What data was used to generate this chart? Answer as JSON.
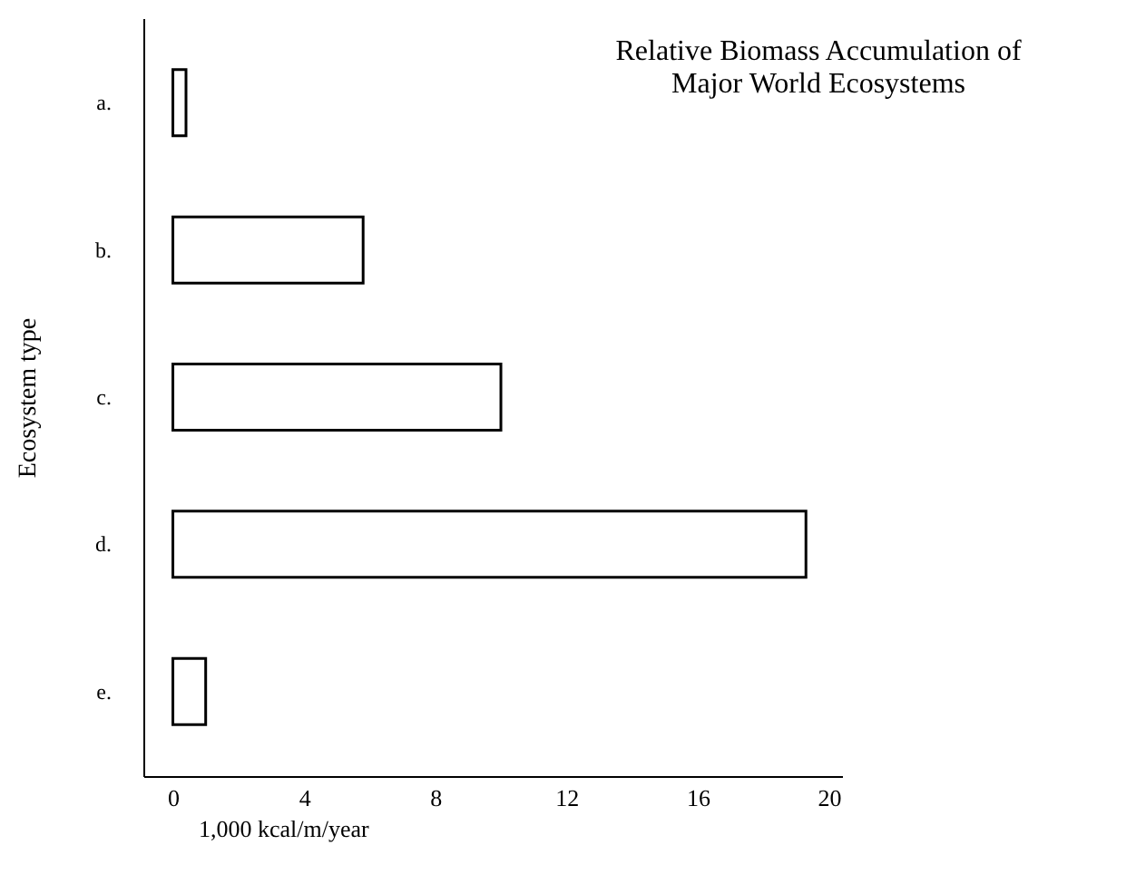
{
  "chart_data": {
    "type": "bar",
    "orientation": "horizontal",
    "title": "Relative Biomass Accumulation of\nMajor World Ecosystems",
    "xlabel": "1,000 kcal/m/year",
    "ylabel": "Ecosystem type",
    "categories": [
      "a.",
      "b.",
      "c.",
      "d.",
      "e."
    ],
    "values": [
      0.4,
      5.8,
      10,
      19.3,
      1
    ],
    "color": "#ffffff",
    "xlim": [
      -0.9,
      20.4
    ],
    "xticks": [
      0,
      4,
      8,
      12,
      16,
      20
    ],
    "grid": false
  }
}
